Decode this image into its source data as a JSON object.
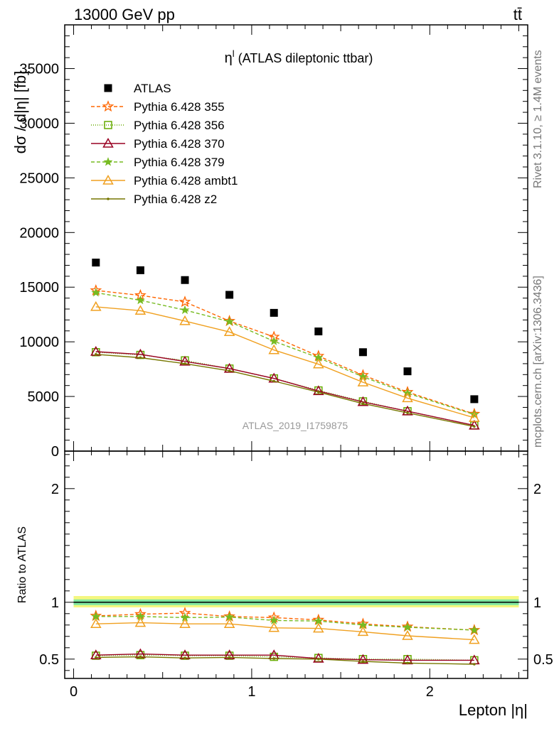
{
  "header": {
    "energy_label": "13000 GeV pp",
    "process_label": "tt̄"
  },
  "side_labels": {
    "rivet": "Rivet 3.1.10, ≥ 1.4M events",
    "mcplots": "mcplots.cern.ch [arXiv:1306.3436]"
  },
  "chart_data": [
    {
      "type": "line",
      "title": "η",
      "title_sup": "l",
      "title_rest": " (ATLAS dileptonic ttbar)",
      "watermark": "ATLAS_2019_I1759875",
      "ylabel": "dσ / d|η| [fb]",
      "xlim": [
        -0.05,
        2.55
      ],
      "ylim": [
        0,
        39000
      ],
      "yticks": [
        0,
        5000,
        10000,
        15000,
        20000,
        25000,
        30000,
        35000
      ],
      "ytick_labels": [
        "0",
        "5000",
        "10000",
        "15000",
        "20000",
        "25000",
        "30000",
        "35000"
      ],
      "x": [
        0.125,
        0.375,
        0.625,
        0.875,
        1.125,
        1.375,
        1.625,
        1.875,
        2.25
      ],
      "legend_position": "top-left",
      "series": [
        {
          "name": "ATLAS",
          "marker": "square",
          "color": "#000000",
          "dash": "none",
          "values": [
            17250,
            16550,
            15650,
            14300,
            12650,
            10950,
            9050,
            7300,
            4750
          ]
        },
        {
          "name": "Pythia 6.428 355",
          "marker": "star-open",
          "color": "#ff6600",
          "dash": "5,3",
          "values": [
            14700,
            14250,
            13650,
            11900,
            10450,
            8700,
            6950,
            5400,
            3400
          ]
        },
        {
          "name": "Pythia 6.428 356",
          "marker": "square-open",
          "color": "#66aa00",
          "dash": "1,2",
          "values": [
            9050,
            8800,
            8300,
            7550,
            6650,
            5550,
            4550,
            3650,
            2350
          ]
        },
        {
          "name": "Pythia 6.428 370",
          "marker": "triangle-open",
          "color": "#990022",
          "dash": "none",
          "values": [
            9100,
            8850,
            8200,
            7550,
            6650,
            5500,
            4500,
            3650,
            2350
          ]
        },
        {
          "name": "Pythia 6.428 379",
          "marker": "star",
          "color": "#77bb22",
          "dash": "5,3",
          "values": [
            14500,
            13800,
            12900,
            11850,
            10050,
            8550,
            6800,
            5300,
            3350
          ]
        },
        {
          "name": "Pythia 6.428 ambt1",
          "marker": "triangle-open",
          "color": "#f0a020",
          "dash": "none",
          "values": [
            13200,
            12850,
            11900,
            10900,
            9250,
            7950,
            6300,
            4850,
            3050
          ]
        },
        {
          "name": "Pythia 6.428 z2",
          "marker": "dot",
          "color": "#777700",
          "dash": "none",
          "values": [
            8850,
            8550,
            8000,
            7350,
            6400,
            5400,
            4350,
            3500,
            2250
          ]
        }
      ]
    },
    {
      "type": "line",
      "ylabel": "Ratio to ATLAS",
      "xlabel": "Lepton |η|",
      "xlim": [
        -0.05,
        2.55
      ],
      "ylim": [
        0.33,
        2.33
      ],
      "xticks": [
        0,
        1,
        2
      ],
      "xtick_labels": [
        "0",
        "1",
        "2"
      ],
      "yticks": [
        0.5,
        1,
        2
      ],
      "ytick_labels": [
        "0.5",
        "1",
        "2"
      ],
      "x": [
        0.125,
        0.375,
        0.625,
        0.875,
        1.125,
        1.375,
        1.625,
        1.875,
        2.25
      ],
      "reference_band": {
        "value": 1,
        "inner": [
          0.975,
          1.025
        ],
        "outer": [
          0.955,
          1.055
        ],
        "inner_color": "#7ee6a0",
        "outer_color": "#f4f780"
      },
      "series": [
        {
          "name": "Pythia 6.428 355",
          "marker": "star-open",
          "color": "#ff6600",
          "dash": "5,3",
          "values": [
            0.88,
            0.895,
            0.905,
            0.875,
            0.865,
            0.845,
            0.81,
            0.785,
            0.755
          ]
        },
        {
          "name": "Pythia 6.428 356",
          "marker": "square-open",
          "color": "#66aa00",
          "dash": "1,2",
          "values": [
            0.53,
            0.535,
            0.53,
            0.53,
            0.52,
            0.51,
            0.5,
            0.5,
            0.49
          ]
        },
        {
          "name": "Pythia 6.428 370",
          "marker": "triangle-open",
          "color": "#990022",
          "dash": "none",
          "values": [
            0.535,
            0.545,
            0.535,
            0.535,
            0.535,
            0.505,
            0.495,
            0.49,
            0.49
          ]
        },
        {
          "name": "Pythia 6.428 379",
          "marker": "star",
          "color": "#77bb22",
          "dash": "5,3",
          "values": [
            0.875,
            0.875,
            0.865,
            0.87,
            0.84,
            0.835,
            0.8,
            0.78,
            0.755
          ]
        },
        {
          "name": "Pythia 6.428 ambt1",
          "marker": "triangle-open",
          "color": "#f0a020",
          "dash": "none",
          "values": [
            0.81,
            0.82,
            0.81,
            0.81,
            0.775,
            0.77,
            0.74,
            0.705,
            0.67
          ]
        },
        {
          "name": "Pythia 6.428 z2",
          "marker": "dot",
          "color": "#777700",
          "dash": "none",
          "values": [
            0.515,
            0.52,
            0.51,
            0.515,
            0.505,
            0.5,
            0.48,
            0.465,
            0.455
          ]
        }
      ]
    }
  ]
}
